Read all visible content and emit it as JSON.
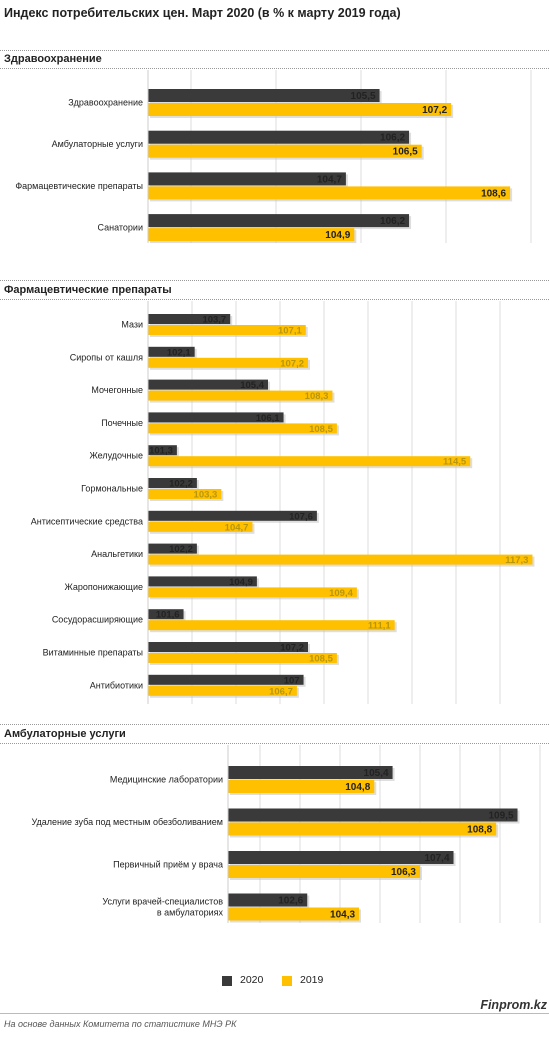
{
  "title": "Индекс потребительских цен. Март 2020  (в % к марту 2019 года)",
  "legend": {
    "s2020": "2020",
    "s2019": "2019"
  },
  "brand": "Finprom.kz",
  "source": "На основе данных  Комитета по статистике МНЭ РК",
  "colors": {
    "s2020": "#3a3a3a",
    "s2019": "#ffc000",
    "label2019_section2": "#b8960c",
    "grid": "#dddddd",
    "rule": "#999999"
  },
  "chart_data": [
    {
      "type": "bar",
      "orientation": "horizontal",
      "title": "Здравоохранение",
      "categories": [
        "Здравоохранение",
        "Амбулаторные услуги",
        "Фармацевтические препараты",
        "Санатории"
      ],
      "series": [
        {
          "name": "2020",
          "values": [
            105.5,
            106.2,
            104.7,
            106.2
          ]
        },
        {
          "name": "2019",
          "values": [
            107.2,
            106.5,
            108.6,
            104.9
          ]
        }
      ],
      "xlim": [
        100,
        109.5
      ],
      "grid": true
    },
    {
      "type": "bar",
      "orientation": "horizontal",
      "title": "Фармацевтические  препараты",
      "categories": [
        "Мази",
        "Сиропы от кашля",
        "Мочегонные",
        "Почечные",
        "Желудочные",
        "Гормональные",
        "Антисептические средства",
        "Анальгетики",
        "Жаропонижающие",
        "Сосудорасширяющие",
        "Витаминные препараты",
        "Антибиотики"
      ],
      "series": [
        {
          "name": "2020",
          "values": [
            103.7,
            102.1,
            105.4,
            106.1,
            101.3,
            102.2,
            107.6,
            102.2,
            104.9,
            101.6,
            107.2,
            107
          ]
        },
        {
          "name": "2019",
          "values": [
            107.1,
            107.2,
            108.3,
            108.5,
            114.5,
            103.3,
            104.7,
            117.3,
            109.4,
            111.1,
            108.5,
            106.7
          ]
        }
      ],
      "xlim": [
        100,
        118
      ],
      "grid": true
    },
    {
      "type": "bar",
      "orientation": "horizontal",
      "title": "Амбулаторные  услуги",
      "categories": [
        [
          "Медицинские лаборатории"
        ],
        [
          "Удаление зуба под местным обезболиванием"
        ],
        [
          "Первичный приём у врача"
        ],
        [
          "Услуги врачей-специалистов",
          "в  амбулаториях"
        ]
      ],
      "series": [
        {
          "name": "2020",
          "values": [
            105.4,
            109.5,
            107.4,
            102.6
          ]
        },
        {
          "name": "2019",
          "values": [
            104.8,
            108.8,
            106.3,
            104.3
          ]
        }
      ],
      "xlim": [
        100,
        110.5
      ],
      "grid": true
    }
  ]
}
